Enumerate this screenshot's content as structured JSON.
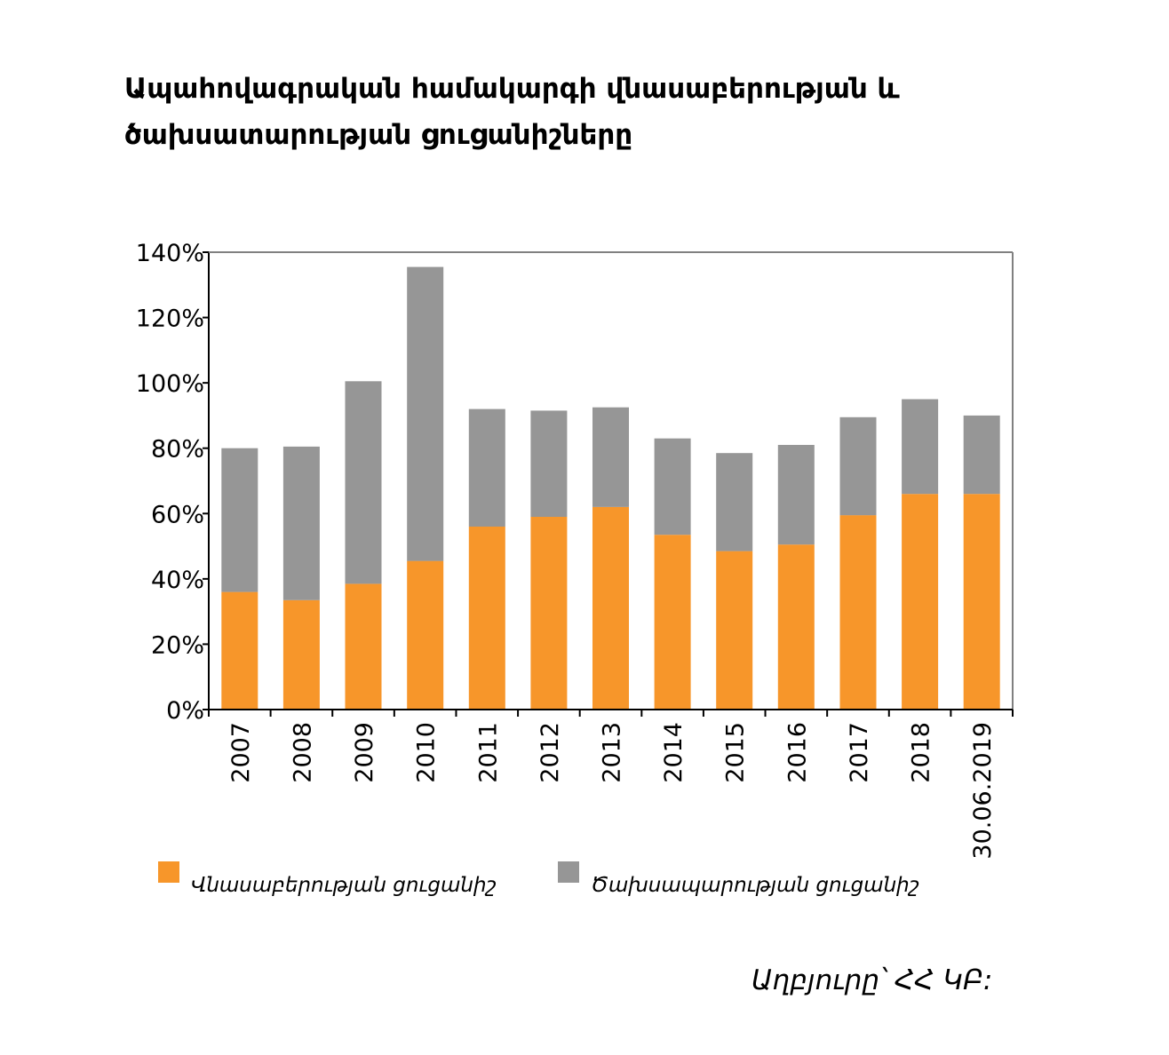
{
  "chart_data": {
    "type": "bar",
    "stacked": true,
    "title": "Ապահովագրական համակարգի վնասաբերության և ծախսատարության ցուցանիշները",
    "categories": [
      "2007",
      "2008",
      "2009",
      "2010",
      "2011",
      "2012",
      "2013",
      "2014",
      "2015",
      "2016",
      "2017",
      "2018",
      "30.06.2019"
    ],
    "series": [
      {
        "name": "Վնասաբերության ցուցանիշ",
        "color": "#F7962A",
        "values": [
          36,
          33.5,
          38.5,
          45.5,
          56,
          59,
          62,
          53.5,
          48.5,
          50.5,
          59.5,
          66,
          66
        ]
      },
      {
        "name": "Ծախսապարության ցուցանիշ",
        "color": "#969696",
        "values": [
          44,
          47,
          62,
          90,
          36,
          32.5,
          30.5,
          29.5,
          30,
          30.5,
          30,
          29,
          24
        ]
      }
    ],
    "ylim": [
      0,
      140
    ],
    "yticks": [
      "0%",
      "20%",
      "40%",
      "60%",
      "80%",
      "100%",
      "120%",
      "140%"
    ],
    "xlabel": "",
    "ylabel": "",
    "grid": false,
    "legend_position": "bottom"
  },
  "source_note": "Աղբյուրը՝ ՀՀ ԿԲ:"
}
